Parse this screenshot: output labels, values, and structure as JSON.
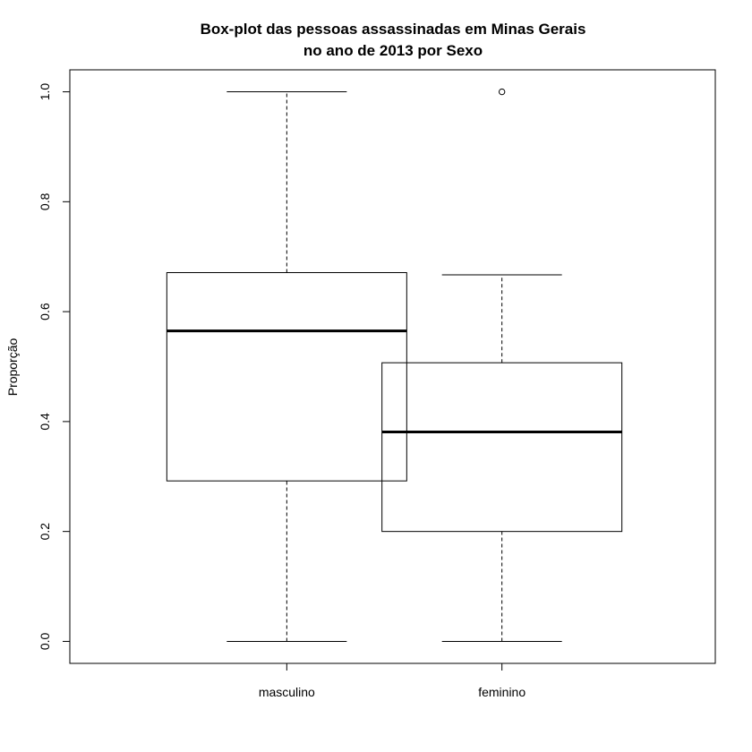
{
  "chart_data": {
    "type": "boxplot",
    "title_line1": "Box-plot das  pessoas assassinadas em Minas Gerais",
    "title_line2": "no ano de 2013 por Sexo",
    "xlabel": "",
    "ylabel": "Proporção",
    "ylim": [
      -0.04,
      1.04
    ],
    "yticks": [
      0.0,
      0.2,
      0.4,
      0.6,
      0.8,
      1.0
    ],
    "ytick_labels": [
      "0.0",
      "0.2",
      "0.4",
      "0.6",
      "0.8",
      "1.0"
    ],
    "grid": false,
    "categories": [
      "masculino",
      "feminino"
    ],
    "boxes": [
      {
        "category": "masculino",
        "whisker_low": 0.0,
        "q1": 0.292,
        "median": 0.565,
        "q3": 0.671,
        "whisker_high": 1.0,
        "outliers": []
      },
      {
        "category": "feminino",
        "whisker_low": 0.0,
        "q1": 0.2,
        "median": 0.381,
        "q3": 0.507,
        "whisker_high": 0.667,
        "outliers": [
          1.0
        ]
      }
    ]
  }
}
